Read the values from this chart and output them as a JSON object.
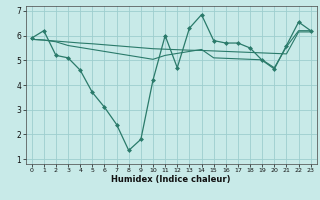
{
  "xlabel": "Humidex (Indice chaleur)",
  "ylabel": "",
  "bg_color": "#c8eae8",
  "line_color": "#2a7a6a",
  "grid_color": "#9ecece",
  "xlim": [
    -0.5,
    23.5
  ],
  "ylim": [
    0.8,
    7.2
  ],
  "yticks": [
    1,
    2,
    3,
    4,
    5,
    6,
    7
  ],
  "xticks": [
    0,
    1,
    2,
    3,
    4,
    5,
    6,
    7,
    8,
    9,
    10,
    11,
    12,
    13,
    14,
    15,
    16,
    17,
    18,
    19,
    20,
    21,
    22,
    23
  ],
  "line1_x": [
    0,
    1,
    2,
    3,
    4,
    5,
    6,
    7,
    8,
    9,
    10,
    11,
    12,
    13,
    14,
    15,
    16,
    17,
    18,
    19,
    20,
    21,
    22,
    23
  ],
  "line1_y": [
    5.9,
    6.2,
    5.2,
    5.1,
    4.6,
    3.7,
    3.1,
    2.4,
    1.35,
    1.8,
    4.2,
    6.0,
    4.7,
    6.3,
    6.85,
    5.8,
    5.7,
    5.7,
    5.5,
    5.0,
    4.65,
    5.6,
    6.55,
    6.2
  ],
  "line2_x": [
    0,
    1,
    2,
    3,
    4,
    5,
    6,
    7,
    8,
    9,
    10,
    11,
    12,
    13,
    14,
    15,
    16,
    17,
    18,
    19,
    20,
    21,
    22,
    23
  ],
  "line2_y": [
    5.85,
    5.82,
    5.78,
    5.74,
    5.7,
    5.67,
    5.63,
    5.59,
    5.55,
    5.51,
    5.47,
    5.45,
    5.43,
    5.41,
    5.4,
    5.38,
    5.36,
    5.34,
    5.32,
    5.3,
    5.28,
    5.26,
    6.15,
    6.15
  ],
  "line3_x": [
    0,
    1,
    2,
    3,
    4,
    5,
    6,
    7,
    8,
    9,
    10,
    11,
    12,
    13,
    14,
    15,
    16,
    17,
    18,
    19,
    20,
    21,
    22,
    23
  ],
  "line3_y": [
    5.85,
    5.82,
    5.75,
    5.6,
    5.52,
    5.44,
    5.36,
    5.28,
    5.2,
    5.12,
    5.04,
    5.2,
    5.28,
    5.36,
    5.44,
    5.1,
    5.08,
    5.06,
    5.04,
    5.02,
    4.7,
    5.55,
    6.2,
    6.2
  ],
  "figsize": [
    3.2,
    2.0
  ],
  "dpi": 100
}
